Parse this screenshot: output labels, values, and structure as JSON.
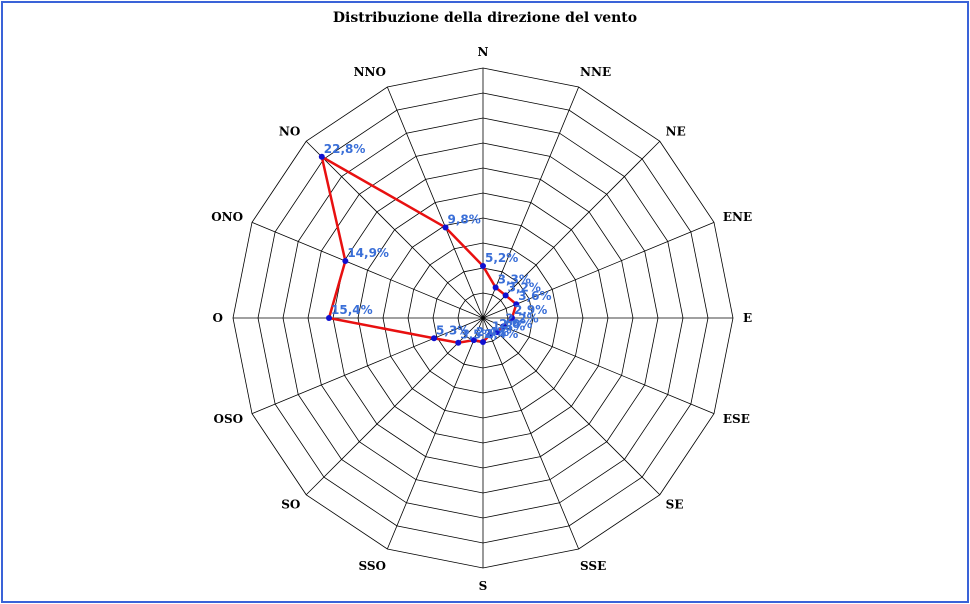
{
  "chart_data": {
    "type": "radar",
    "title": "Distribuzione della direzione del vento",
    "categories": [
      "N",
      "NNE",
      "NE",
      "ENE",
      "E",
      "ESE",
      "SE",
      "SSE",
      "S",
      "SSO",
      "SO",
      "OSO",
      "O",
      "ONO",
      "NO",
      "NNO"
    ],
    "values": [
      5.2,
      3.3,
      3.2,
      3.6,
      2.9,
      2.2,
      2.0,
      1.8,
      2.4,
      2.4,
      3.5,
      5.3,
      15.4,
      14.9,
      22.8,
      9.8
    ],
    "value_labels": [
      "5,2%",
      "3,3%",
      "3,2%",
      "3,6%",
      "2,9%",
      "2,2%",
      "2,0%",
      "1,8%",
      "2,4%",
      "2,4%",
      "3,5%",
      "5,3%",
      "15,4%",
      "14,9%",
      "22,8%",
      "9,8%"
    ],
    "rmax": 25,
    "rings": 10,
    "series_color": "#e81010",
    "marker_color": "#1010d0",
    "label_color": "#3a6fd8",
    "grid_color": "#000000",
    "frame_color": "#3a63d8"
  }
}
